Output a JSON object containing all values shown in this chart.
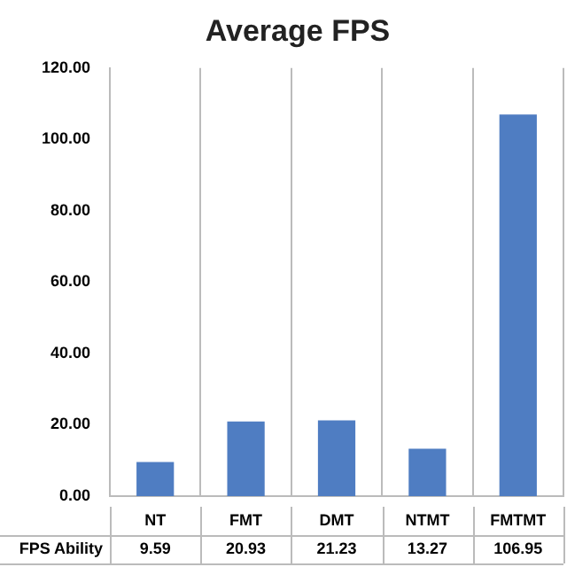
{
  "chart_data": {
    "type": "bar",
    "title": "Average FPS",
    "categories": [
      "NT",
      "FMT",
      "DMT",
      "NTMT",
      "FMTMT"
    ],
    "series": [
      {
        "name": "FPS Ability",
        "color": "#4f7dc2",
        "values": [
          9.59,
          20.93,
          21.23,
          13.27,
          106.95
        ]
      }
    ],
    "ylim": [
      0,
      120
    ],
    "yticks": [
      {
        "value": 0,
        "label": "0.00"
      },
      {
        "value": 20,
        "label": "20.00"
      },
      {
        "value": 40,
        "label": "40.00"
      },
      {
        "value": 60,
        "label": "60.00"
      },
      {
        "value": 80,
        "label": "80.00"
      },
      {
        "value": 100,
        "label": "100.00"
      },
      {
        "value": 120,
        "label": "120.00"
      }
    ],
    "grid": "x",
    "data_labels": true,
    "legend": false
  }
}
